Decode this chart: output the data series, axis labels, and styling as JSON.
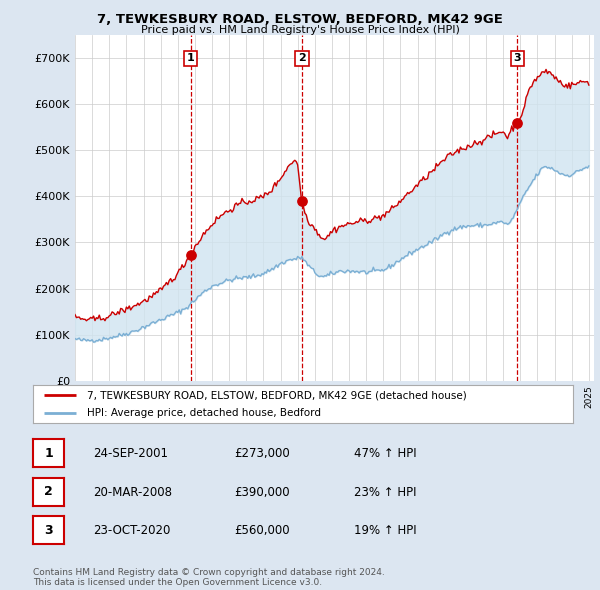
{
  "title": "7, TEWKESBURY ROAD, ELSTOW, BEDFORD, MK42 9GE",
  "subtitle": "Price paid vs. HM Land Registry's House Price Index (HPI)",
  "sale_prices": [
    273000,
    390000,
    560000
  ],
  "sale_labels": [
    "1",
    "2",
    "3"
  ],
  "sale_hpi_pct": [
    "47% ↑ HPI",
    "23% ↑ HPI",
    "19% ↑ HPI"
  ],
  "sale_date_labels": [
    "24-SEP-2001",
    "20-MAR-2008",
    "23-OCT-2020"
  ],
  "red_line_color": "#cc0000",
  "blue_line_color": "#7bafd4",
  "fill_color": "#d0e4f0",
  "vline_color": "#cc0000",
  "background_color": "#dce6f1",
  "plot_bg_color": "#ffffff",
  "legend_label_red": "7, TEWKESBURY ROAD, ELSTOW, BEDFORD, MK42 9GE (detached house)",
  "legend_label_blue": "HPI: Average price, detached house, Bedford",
  "footer_text": "Contains HM Land Registry data © Crown copyright and database right 2024.\nThis data is licensed under the Open Government Licence v3.0.",
  "ylim": [
    0,
    750000
  ],
  "yticks": [
    0,
    100000,
    200000,
    300000,
    400000,
    500000,
    600000,
    700000
  ],
  "ytick_labels": [
    "£0",
    "£100K",
    "£200K",
    "£300K",
    "£400K",
    "£500K",
    "£600K",
    "£700K"
  ],
  "year_start": 1995,
  "year_end": 2025
}
